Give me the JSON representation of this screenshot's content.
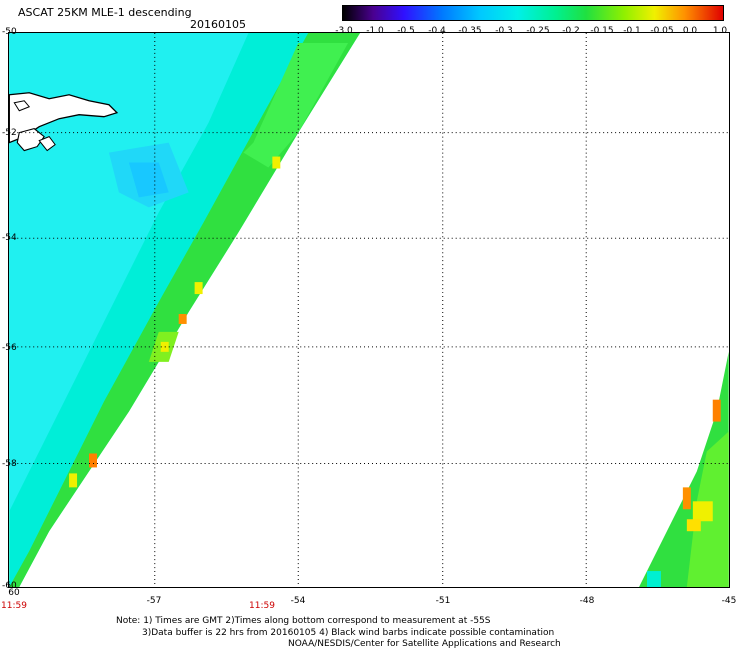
{
  "header": {
    "title": "ASCAT 25KM MLE-1 descending",
    "date": "20160105"
  },
  "colorbar": {
    "ticks": [
      "-3.0",
      "-1.0",
      "-0.5",
      "-0.4",
      "-0.35",
      "-0.3",
      "-0.25",
      "-0.2",
      "-0.15",
      "-0.1",
      "-0.05",
      "0.0",
      "1.0"
    ],
    "colors": [
      "#000000",
      "#6a00b8",
      "#2010ff",
      "#0080ff",
      "#00ccff",
      "#00f0e8",
      "#00f0a0",
      "#20e040",
      "#80f000",
      "#f0f000",
      "#ff9000",
      "#ff3010",
      "#e00000"
    ]
  },
  "map": {
    "y_ticks": [
      "-50",
      "-52",
      "-54",
      "-56",
      "-58",
      "-60"
    ],
    "x_ticks": [
      "-57",
      "-54",
      "-51",
      "-48",
      "-45"
    ],
    "x_tick_corner": "60",
    "times": [
      "11:59",
      "11:59"
    ]
  },
  "notes": [
    "Note: 1) Times are GMT 2)Times along bottom correspond to measurement at -55S",
    "3)Data buffer is 22 hrs from 20160105 4) Black wind barbs indicate possible contamination",
    "NOAA/NESDIS/Center for Satellite Applications and Research"
  ]
}
